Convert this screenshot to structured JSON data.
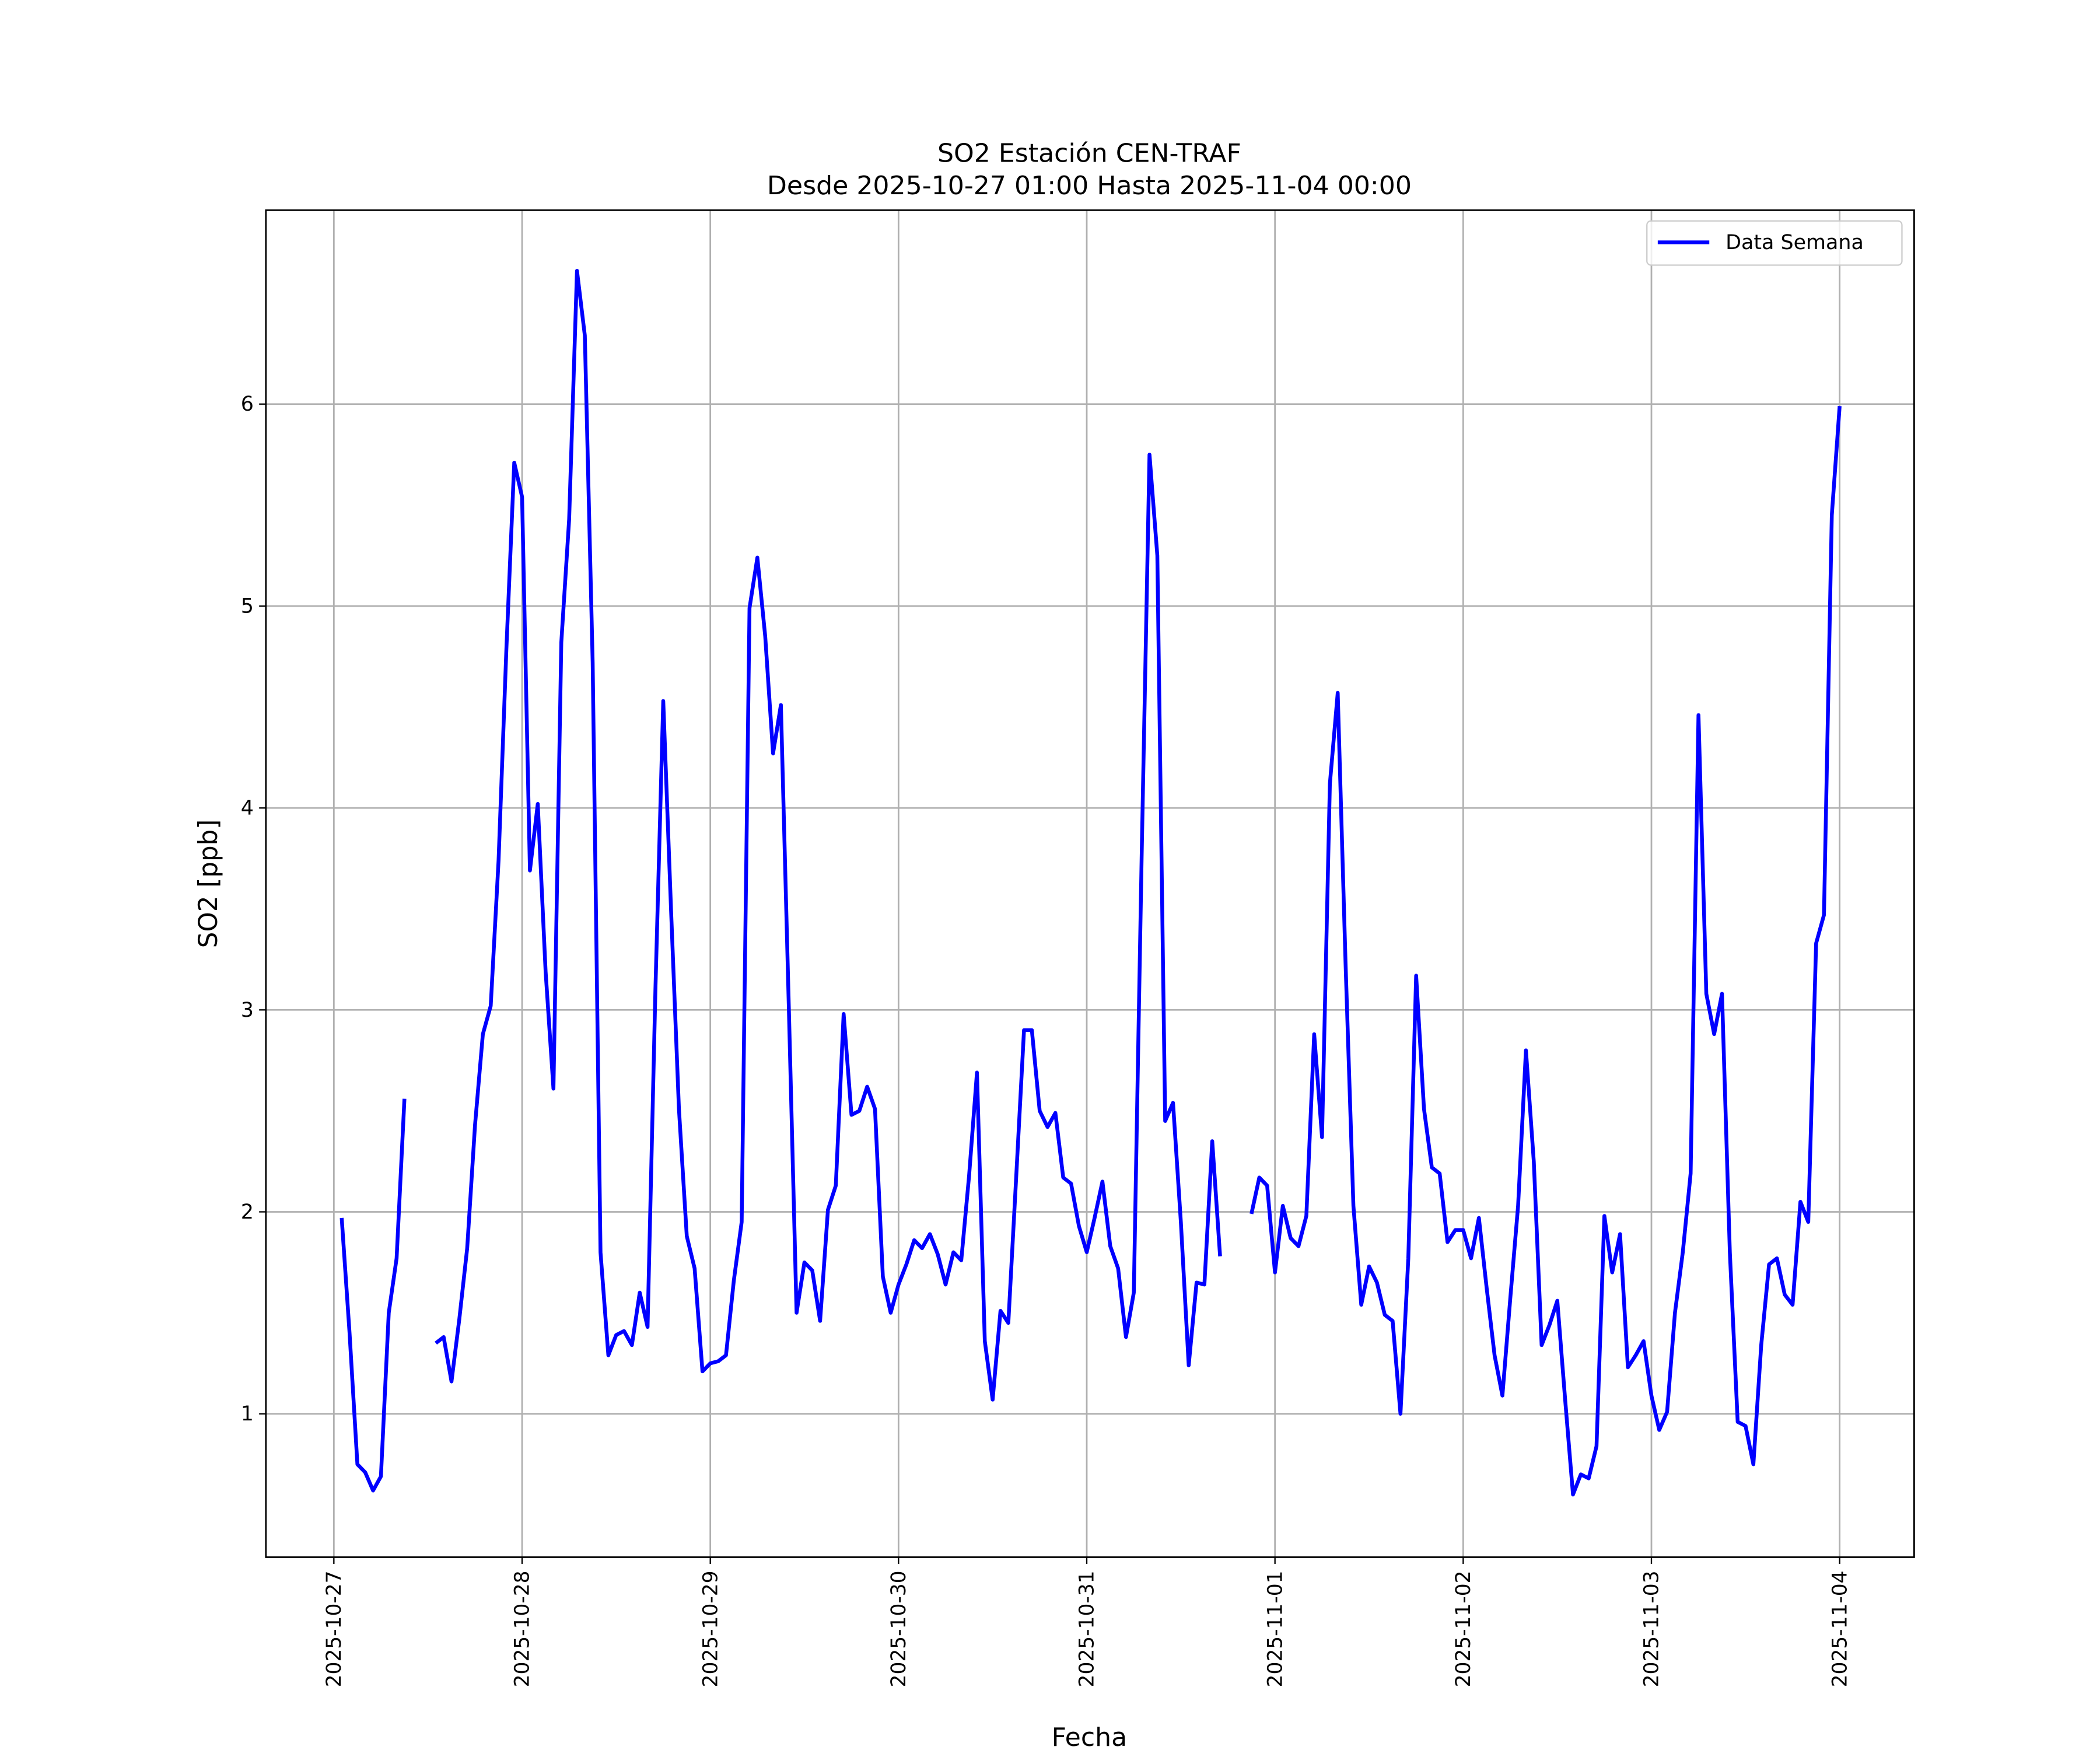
{
  "chart_data": {
    "type": "line",
    "title": "SO2 Estación CEN-TRAF",
    "subtitle": "Desde 2025-10-27 01:00 Hasta 2025-11-04 00:00",
    "x_label": "Fecha",
    "y_label": "SO2 [ppb]",
    "grid": true,
    "legend": "upper right",
    "xlim": [
      "2025-10-26 15:20",
      "2025-11-04 09:30"
    ],
    "xticks": [
      "2025-10-27",
      "2025-10-28",
      "2025-10-29",
      "2025-10-30",
      "2025-10-31",
      "2025-11-01",
      "2025-11-02",
      "2025-11-03",
      "2025-11-04"
    ],
    "ylim": [
      0.29,
      6.96
    ],
    "yticks": [
      1,
      2,
      3,
      4,
      5,
      6
    ],
    "x": [
      "2025-10-27 01:00",
      "2025-10-27 02:00",
      "2025-10-27 03:00",
      "2025-10-27 04:00",
      "2025-10-27 05:00",
      "2025-10-27 06:00",
      "2025-10-27 07:00",
      "2025-10-27 08:00",
      "2025-10-27 09:00",
      "2025-10-27 10:00",
      "2025-10-27 11:00",
      "2025-10-27 12:00",
      "2025-10-27 13:00",
      "2025-10-27 14:00",
      "2025-10-27 15:00",
      "2025-10-27 16:00",
      "2025-10-27 17:00",
      "2025-10-27 18:00",
      "2025-10-27 19:00",
      "2025-10-27 20:00",
      "2025-10-27 21:00",
      "2025-10-27 22:00",
      "2025-10-27 23:00",
      "2025-10-28 00:00",
      "2025-10-28 01:00",
      "2025-10-28 02:00",
      "2025-10-28 03:00",
      "2025-10-28 04:00",
      "2025-10-28 05:00",
      "2025-10-28 06:00",
      "2025-10-28 07:00",
      "2025-10-28 08:00",
      "2025-10-28 09:00",
      "2025-10-28 10:00",
      "2025-10-28 11:00",
      "2025-10-28 12:00",
      "2025-10-28 13:00",
      "2025-10-28 14:00",
      "2025-10-28 15:00",
      "2025-10-28 16:00",
      "2025-10-28 17:00",
      "2025-10-28 18:00",
      "2025-10-28 19:00",
      "2025-10-28 20:00",
      "2025-10-28 21:00",
      "2025-10-28 22:00",
      "2025-10-28 23:00",
      "2025-10-29 00:00",
      "2025-10-29 01:00",
      "2025-10-29 02:00",
      "2025-10-29 03:00",
      "2025-10-29 04:00",
      "2025-10-29 05:00",
      "2025-10-29 06:00",
      "2025-10-29 07:00",
      "2025-10-29 08:00",
      "2025-10-29 09:00",
      "2025-10-29 10:00",
      "2025-10-29 11:00",
      "2025-10-29 12:00",
      "2025-10-29 13:00",
      "2025-10-29 14:00",
      "2025-10-29 15:00",
      "2025-10-29 16:00",
      "2025-10-29 17:00",
      "2025-10-29 18:00",
      "2025-10-29 19:00",
      "2025-10-29 20:00",
      "2025-10-29 21:00",
      "2025-10-29 22:00",
      "2025-10-29 23:00",
      "2025-10-30 00:00",
      "2025-10-30 01:00",
      "2025-10-30 02:00",
      "2025-10-30 03:00",
      "2025-10-30 04:00",
      "2025-10-30 05:00",
      "2025-10-30 06:00",
      "2025-10-30 07:00",
      "2025-10-30 08:00",
      "2025-10-30 09:00",
      "2025-10-30 10:00",
      "2025-10-30 11:00",
      "2025-10-30 12:00",
      "2025-10-30 13:00",
      "2025-10-30 14:00",
      "2025-10-30 15:00",
      "2025-10-30 16:00",
      "2025-10-30 17:00",
      "2025-10-30 18:00",
      "2025-10-30 19:00",
      "2025-10-30 20:00",
      "2025-10-30 21:00",
      "2025-10-30 22:00",
      "2025-10-30 23:00",
      "2025-10-31 00:00",
      "2025-10-31 01:00",
      "2025-10-31 02:00",
      "2025-10-31 03:00",
      "2025-10-31 04:00",
      "2025-10-31 05:00",
      "2025-10-31 06:00",
      "2025-10-31 07:00",
      "2025-10-31 08:00",
      "2025-10-31 09:00",
      "2025-10-31 10:00",
      "2025-10-31 11:00",
      "2025-10-31 12:00",
      "2025-10-31 13:00",
      "2025-10-31 14:00",
      "2025-10-31 15:00",
      "2025-10-31 16:00",
      "2025-10-31 17:00",
      "2025-10-31 18:00",
      "2025-10-31 19:00",
      "2025-10-31 20:00",
      "2025-10-31 21:00",
      "2025-10-31 22:00",
      "2025-10-31 23:00",
      "2025-11-01 00:00",
      "2025-11-01 01:00",
      "2025-11-01 02:00",
      "2025-11-01 03:00",
      "2025-11-01 04:00",
      "2025-11-01 05:00",
      "2025-11-01 06:00",
      "2025-11-01 07:00",
      "2025-11-01 08:00",
      "2025-11-01 09:00",
      "2025-11-01 10:00",
      "2025-11-01 11:00",
      "2025-11-01 12:00",
      "2025-11-01 13:00",
      "2025-11-01 14:00",
      "2025-11-01 15:00",
      "2025-11-01 16:00",
      "2025-11-01 17:00",
      "2025-11-01 18:00",
      "2025-11-01 19:00",
      "2025-11-01 20:00",
      "2025-11-01 21:00",
      "2025-11-01 22:00",
      "2025-11-01 23:00",
      "2025-11-02 00:00",
      "2025-11-02 01:00",
      "2025-11-02 02:00",
      "2025-11-02 03:00",
      "2025-11-02 04:00",
      "2025-11-02 05:00",
      "2025-11-02 06:00",
      "2025-11-02 07:00",
      "2025-11-02 08:00",
      "2025-11-02 09:00",
      "2025-11-02 10:00",
      "2025-11-02 11:00",
      "2025-11-02 12:00",
      "2025-11-02 13:00",
      "2025-11-02 14:00",
      "2025-11-02 15:00",
      "2025-11-02 16:00",
      "2025-11-02 17:00",
      "2025-11-02 18:00",
      "2025-11-02 19:00",
      "2025-11-02 20:00",
      "2025-11-02 21:00",
      "2025-11-02 22:00",
      "2025-11-02 23:00",
      "2025-11-03 00:00",
      "2025-11-03 01:00",
      "2025-11-03 02:00",
      "2025-11-03 03:00",
      "2025-11-03 04:00",
      "2025-11-03 05:00",
      "2025-11-03 06:00",
      "2025-11-03 07:00",
      "2025-11-03 08:00",
      "2025-11-03 09:00",
      "2025-11-03 10:00",
      "2025-11-03 11:00",
      "2025-11-03 12:00",
      "2025-11-03 13:00",
      "2025-11-03 14:00",
      "2025-11-03 15:00",
      "2025-11-03 16:00",
      "2025-11-03 17:00",
      "2025-11-03 18:00",
      "2025-11-03 19:00",
      "2025-11-03 20:00",
      "2025-11-03 21:00",
      "2025-11-03 22:00",
      "2025-11-03 23:00",
      "2025-11-04 00:00"
    ],
    "series": [
      {
        "name": "Data Semana",
        "color": "#0000ff",
        "values": [
          1.97,
          1.4,
          0.75,
          0.71,
          0.62,
          0.69,
          1.5,
          1.77,
          2.56,
          null,
          null,
          null,
          1.35,
          1.38,
          1.16,
          1.47,
          1.82,
          2.43,
          2.88,
          3.02,
          3.74,
          4.79,
          5.71,
          5.54,
          3.69,
          4.02,
          3.19,
          2.61,
          4.82,
          5.43,
          6.66,
          6.34,
          4.72,
          1.8,
          1.29,
          1.39,
          1.41,
          1.34,
          1.6,
          1.43,
          3.1,
          4.53,
          3.49,
          2.51,
          1.88,
          1.72,
          1.21,
          1.25,
          1.26,
          1.29,
          1.66,
          1.95,
          4.99,
          5.24,
          4.85,
          4.27,
          4.51,
          3.03,
          1.5,
          1.75,
          1.71,
          1.46,
          2.01,
          2.13,
          2.98,
          2.48,
          2.5,
          2.62,
          2.51,
          1.68,
          1.5,
          1.64,
          1.74,
          1.86,
          1.82,
          1.89,
          1.79,
          1.64,
          1.8,
          1.76,
          2.18,
          2.69,
          1.36,
          1.07,
          1.51,
          1.45,
          2.17,
          2.9,
          2.9,
          2.5,
          2.42,
          2.49,
          2.17,
          2.14,
          1.93,
          1.8,
          1.97,
          2.15,
          1.83,
          1.72,
          1.38,
          1.6,
          3.76,
          5.75,
          5.25,
          2.45,
          2.54,
          1.95,
          1.24,
          1.65,
          1.64,
          2.35,
          1.78,
          null,
          null,
          null,
          1.99,
          2.17,
          2.13,
          1.7,
          2.03,
          1.87,
          1.83,
          1.98,
          2.88,
          2.37,
          4.12,
          4.57,
          3.23,
          2.03,
          1.54,
          1.73,
          1.65,
          1.49,
          1.46,
          1.0,
          1.77,
          3.17,
          2.51,
          2.22,
          2.19,
          1.85,
          1.91,
          1.91,
          1.77,
          1.97,
          1.62,
          1.29,
          1.09,
          1.57,
          2.03,
          2.8,
          2.25,
          1.34,
          1.44,
          1.56,
          1.07,
          0.6,
          0.7,
          0.68,
          0.84,
          1.98,
          1.7,
          1.89,
          1.23,
          1.29,
          1.36,
          1.09,
          0.92,
          1.01,
          1.5,
          1.8,
          2.19,
          4.46,
          3.08,
          2.88,
          3.08,
          1.8,
          0.96,
          0.94,
          0.75,
          1.34,
          1.74,
          1.77,
          1.59,
          1.54,
          2.05,
          1.95,
          3.33,
          3.47,
          5.45,
          5.99
        ]
      }
    ]
  }
}
